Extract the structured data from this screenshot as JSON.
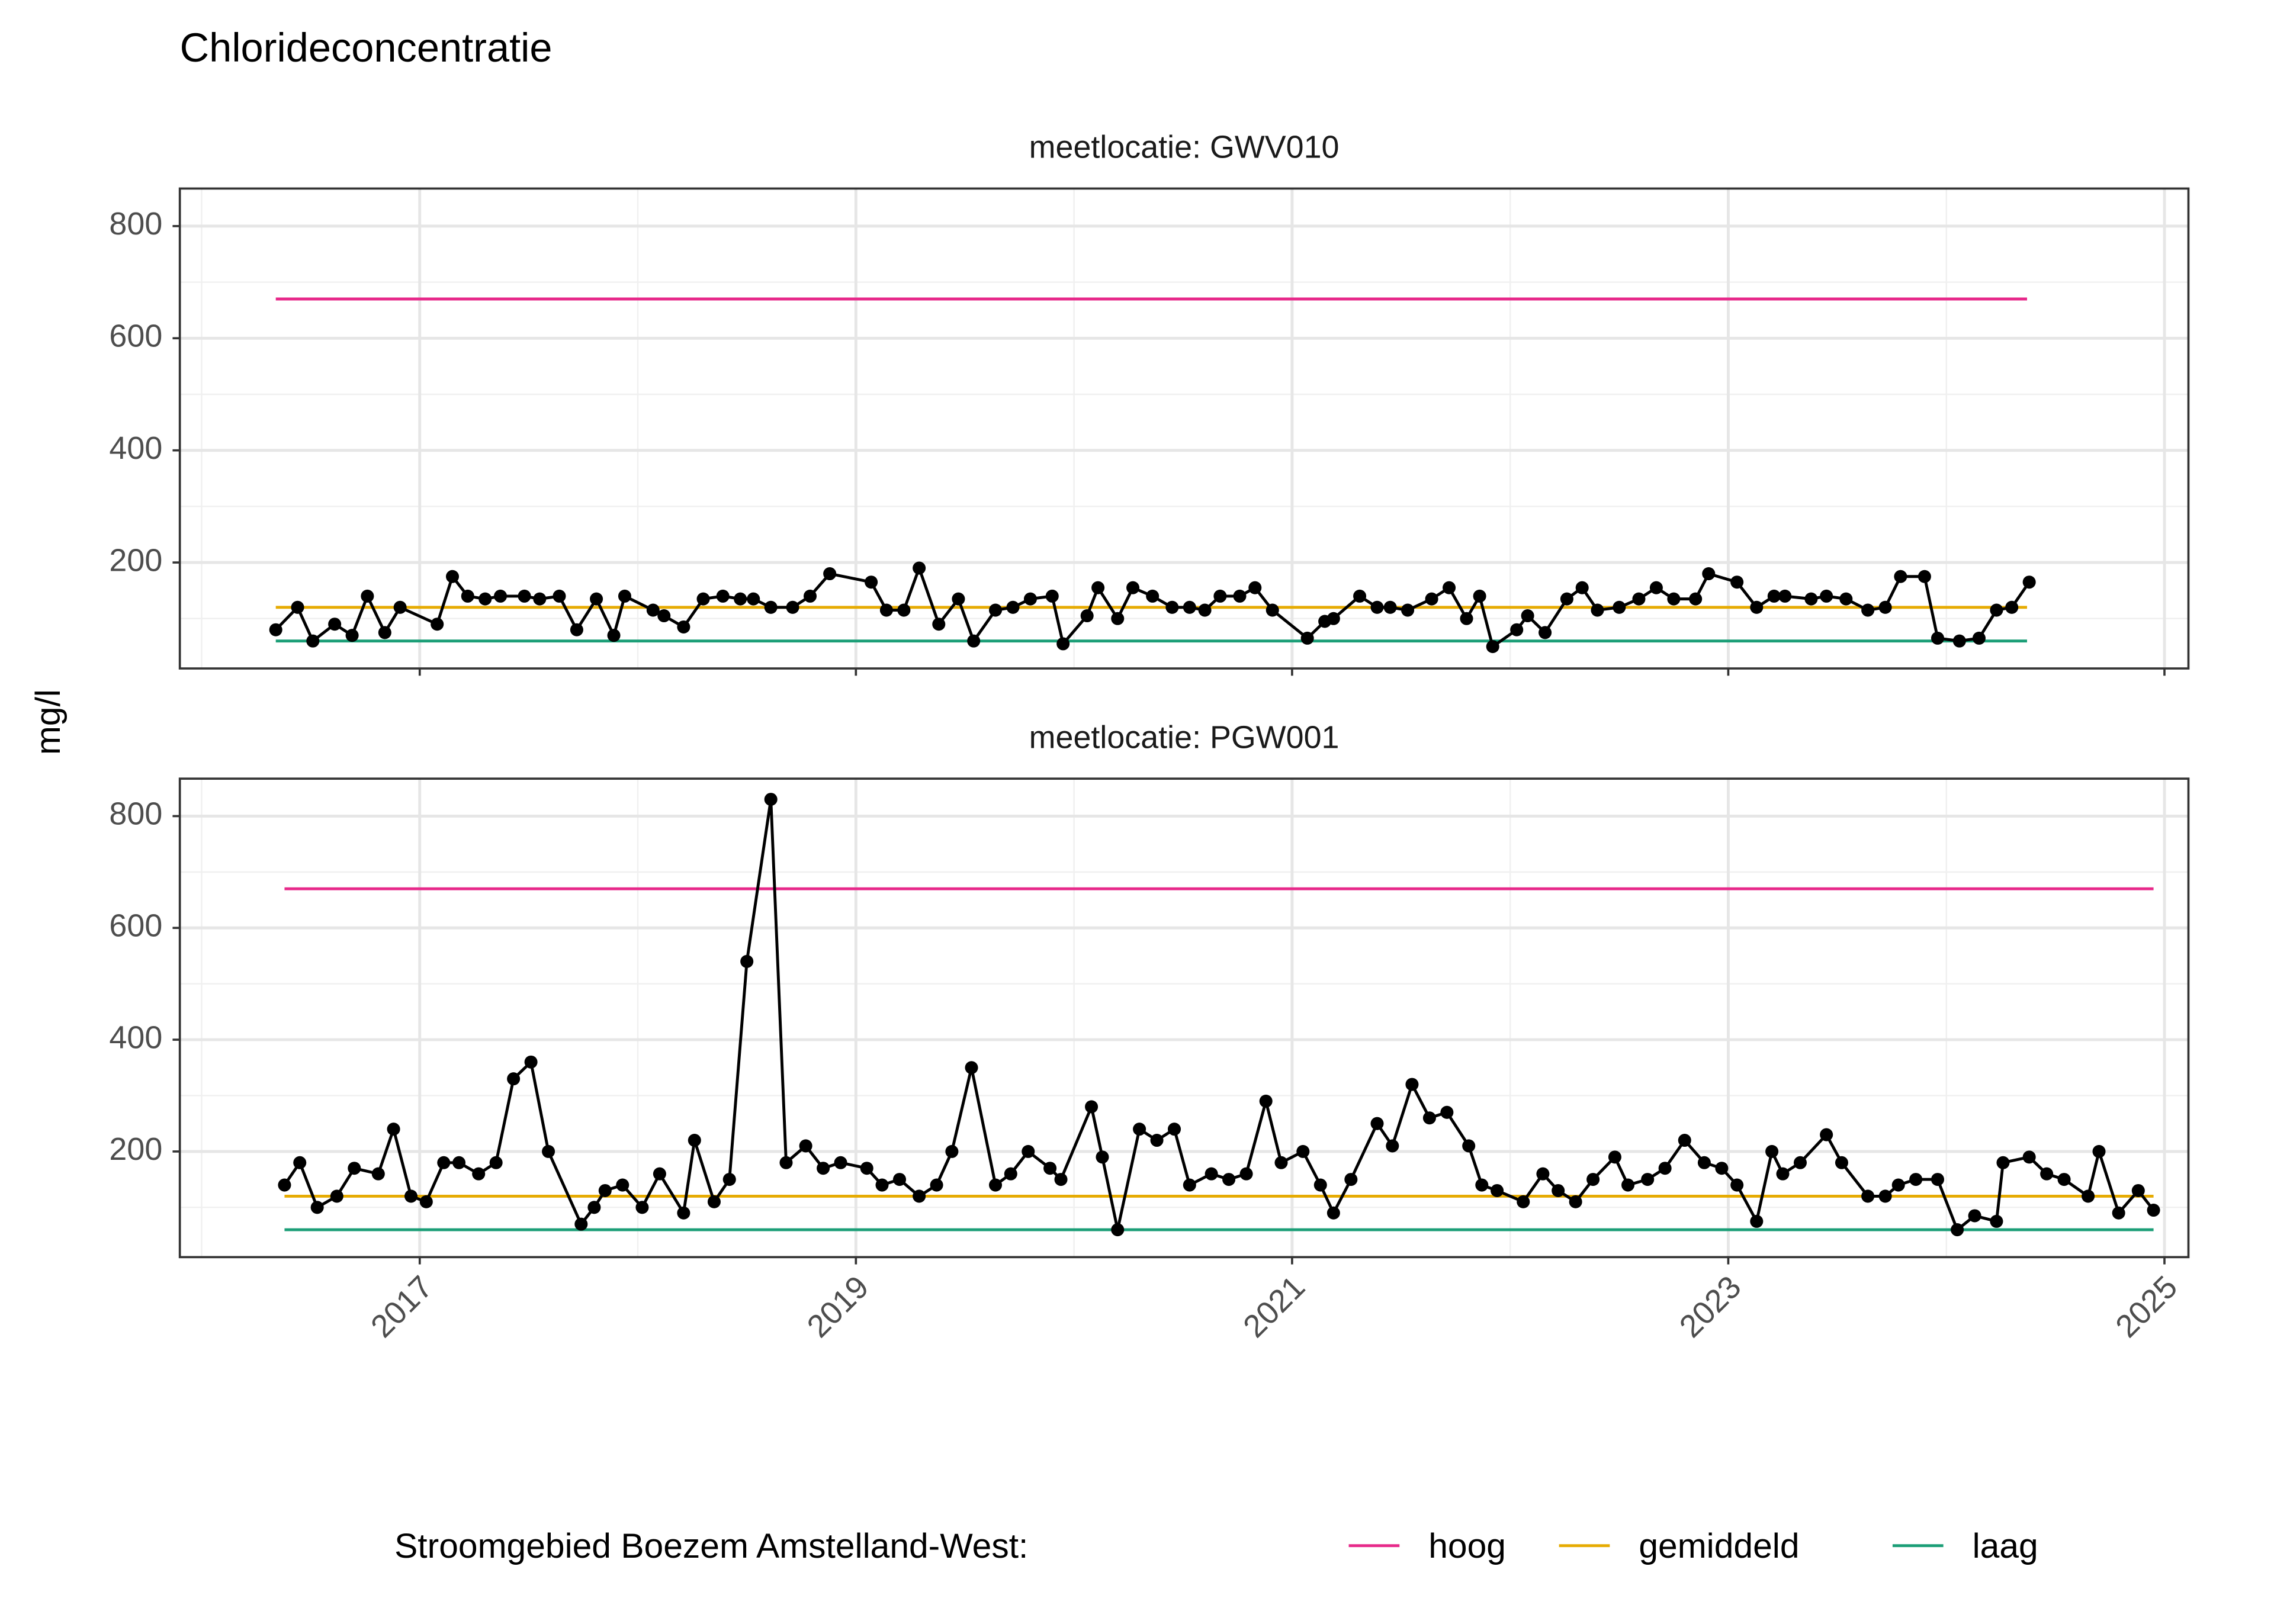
{
  "title": "Chlorideconcentratie",
  "y_label": "mg/l",
  "legend": {
    "title": "Stroomgebied Boezem Amstelland-West:",
    "series": [
      {
        "name": "hoog",
        "color": "#e7298a"
      },
      {
        "name": "gemiddeld",
        "color": "#e6ab02"
      },
      {
        "name": "laag",
        "color": "#1b9e77"
      }
    ]
  },
  "chart_data": [
    {
      "type": "line",
      "subtitle": "meetlocatie: GWV010",
      "xlim": [
        2015.9,
        2025.11
      ],
      "xticks": [
        2017,
        2019,
        2021,
        2023,
        2025
      ],
      "ylim": [
        11,
        867
      ],
      "yticks": [
        200,
        400,
        600,
        800
      ],
      "grid": true,
      "series": [
        {
          "color": "#000000",
          "x": [
            2016.34,
            2016.44,
            2016.51,
            2016.61,
            2016.69,
            2016.76,
            2016.84,
            2016.91,
            2017.08,
            2017.15,
            2017.22,
            2017.3,
            2017.37,
            2017.48,
            2017.55,
            2017.64,
            2017.72,
            2017.81,
            2017.89,
            2017.94,
            2018.07,
            2018.12,
            2018.21,
            2018.3,
            2018.39,
            2018.47,
            2018.53,
            2018.61,
            2018.71,
            2018.79,
            2018.88,
            2019.07,
            2019.14,
            2019.22,
            2019.29,
            2019.38,
            2019.47,
            2019.54,
            2019.64,
            2019.72,
            2019.8,
            2019.9,
            2019.95,
            2020.06,
            2020.11,
            2020.2,
            2020.27,
            2020.36,
            2020.45,
            2020.53,
            2020.6,
            2020.67,
            2020.76,
            2020.83,
            2020.91,
            2021.07,
            2021.15,
            2021.19,
            2021.31,
            2021.39,
            2021.45,
            2021.53,
            2021.64,
            2021.72,
            2021.8,
            2021.86,
            2021.92,
            2022.03,
            2022.08,
            2022.16,
            2022.26,
            2022.33,
            2022.4,
            2022.5,
            2022.59,
            2022.67,
            2022.75,
            2022.85,
            2022.91,
            2023.04,
            2023.13,
            2023.21,
            2023.26,
            2023.38,
            2023.45,
            2023.54,
            2023.64,
            2023.72,
            2023.79,
            2023.9,
            2023.96,
            2024.06,
            2024.15,
            2024.23,
            2024.3,
            2024.38
          ],
          "values": [
            80,
            120,
            60,
            90,
            70,
            140,
            75,
            120,
            90,
            175,
            140,
            135,
            140,
            140,
            135,
            140,
            80,
            135,
            70,
            140,
            115,
            105,
            85,
            135,
            140,
            135,
            135,
            120,
            120,
            140,
            180,
            165,
            115,
            115,
            190,
            90,
            135,
            60,
            115,
            120,
            135,
            140,
            55,
            105,
            155,
            100,
            155,
            140,
            120,
            120,
            115,
            140,
            140,
            155,
            115,
            65,
            95,
            100,
            140,
            120,
            120,
            115,
            135,
            155,
            100,
            140,
            50,
            80,
            105,
            75,
            135,
            155,
            115,
            120,
            135,
            155,
            135,
            135,
            180,
            165,
            120,
            140,
            140,
            135,
            140,
            135,
            115,
            120,
            175,
            175,
            65,
            60,
            65,
            115,
            120,
            165
          ]
        }
      ],
      "reference_lines": [
        {
          "x": [
            2016.34,
            2024.37
          ],
          "values": [
            670,
            670
          ]
        },
        {
          "x": [
            2016.34,
            2024.37
          ],
          "values": [
            120,
            120
          ]
        },
        {
          "x": [
            2016.34,
            2024.37
          ],
          "values": [
            60,
            60
          ]
        }
      ]
    },
    {
      "type": "line",
      "subtitle": "meetlocatie: PGW001",
      "xlim": [
        2015.9,
        2025.11
      ],
      "xticks": [
        2017,
        2019,
        2021,
        2023,
        2025
      ],
      "ylim": [
        11,
        867
      ],
      "yticks": [
        200,
        400,
        600,
        800
      ],
      "grid": true,
      "series": [
        {
          "color": "#000000",
          "x": [
            2016.38,
            2016.45,
            2016.53,
            2016.62,
            2016.7,
            2016.81,
            2016.88,
            2016.96,
            2017.03,
            2017.11,
            2017.18,
            2017.27,
            2017.35,
            2017.43,
            2017.51,
            2017.59,
            2017.74,
            2017.8,
            2017.85,
            2017.93,
            2018.02,
            2018.1,
            2018.21,
            2018.26,
            2018.35,
            2018.42,
            2018.5,
            2018.61,
            2018.68,
            2018.77,
            2018.85,
            2018.93,
            2019.05,
            2019.12,
            2019.2,
            2019.29,
            2019.37,
            2019.44,
            2019.53,
            2019.64,
            2019.71,
            2019.79,
            2019.89,
            2019.94,
            2020.08,
            2020.13,
            2020.2,
            2020.3,
            2020.38,
            2020.46,
            2020.53,
            2020.63,
            2020.71,
            2020.79,
            2020.88,
            2020.95,
            2021.05,
            2021.13,
            2021.19,
            2021.27,
            2021.39,
            2021.46,
            2021.55,
            2021.63,
            2021.71,
            2021.81,
            2021.87,
            2021.94,
            2022.06,
            2022.15,
            2022.22,
            2022.3,
            2022.38,
            2022.48,
            2022.54,
            2022.63,
            2022.71,
            2022.8,
            2022.89,
            2022.97,
            2023.04,
            2023.13,
            2023.2,
            2023.25,
            2023.33,
            2023.45,
            2023.52,
            2023.64,
            2023.72,
            2023.78,
            2023.86,
            2023.96,
            2024.05,
            2024.13,
            2024.23,
            2024.26,
            2024.38,
            2024.46,
            2024.54,
            2024.65,
            2024.7,
            2024.79,
            2024.88,
            2024.95
          ],
          "values": [
            140,
            180,
            100,
            120,
            170,
            160,
            240,
            120,
            110,
            180,
            180,
            160,
            180,
            330,
            360,
            200,
            70,
            100,
            130,
            140,
            100,
            160,
            90,
            220,
            110,
            150,
            540,
            830,
            180,
            210,
            170,
            180,
            170,
            140,
            150,
            120,
            140,
            200,
            350,
            140,
            160,
            200,
            170,
            150,
            280,
            190,
            60,
            240,
            220,
            240,
            140,
            160,
            150,
            160,
            290,
            180,
            200,
            140,
            90,
            150,
            250,
            210,
            320,
            260,
            270,
            210,
            140,
            130,
            110,
            160,
            130,
            110,
            150,
            190,
            140,
            150,
            170,
            220,
            180,
            170,
            140,
            75,
            200,
            160,
            180,
            230,
            180,
            120,
            120,
            140,
            150,
            150,
            60,
            85,
            75,
            180,
            190,
            160,
            150,
            120,
            200,
            90,
            130,
            95
          ]
        }
      ],
      "reference_lines": [
        {
          "x": [
            2016.38,
            2024.95
          ],
          "values": [
            670,
            670
          ]
        },
        {
          "x": [
            2016.38,
            2024.95
          ],
          "values": [
            120,
            120
          ]
        },
        {
          "x": [
            2016.38,
            2024.95
          ],
          "values": [
            60,
            60
          ]
        }
      ]
    }
  ]
}
